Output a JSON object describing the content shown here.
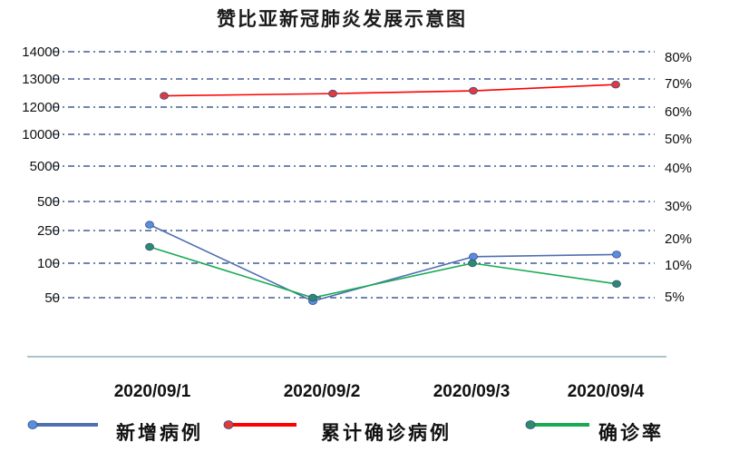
{
  "chart_data": {
    "type": "line",
    "title": "赞比亚新冠肺炎发展示意图",
    "categories": [
      "2020/09/1",
      "2020/09/2",
      "2020/09/3",
      "2020/09/4"
    ],
    "left_axis": {
      "tick_labels": [
        "14000",
        "13000",
        "12000",
        "10000",
        "5000",
        "500",
        "250",
        "100",
        "50"
      ]
    },
    "right_axis": {
      "tick_labels": [
        "80%",
        "70%",
        "60%",
        "50%",
        "40%",
        "30%",
        "20%",
        "10%",
        "5%"
      ]
    },
    "grid": true,
    "legend_position": "bottom",
    "series": [
      {
        "name": "新增病例",
        "axis": "left",
        "values": [
          300,
          45,
          130,
          140
        ],
        "color": "#4f6fb0",
        "marker_color": "#5b8ddb"
      },
      {
        "name": "累计确诊病例",
        "axis": "left",
        "values": [
          12400,
          12480,
          12580,
          12800
        ],
        "color": "#ff0000",
        "marker_color": "#e03a3a"
      },
      {
        "name": "确诊率",
        "axis": "right",
        "values": [
          15,
          5,
          10,
          7
        ],
        "color": "#1aaa55",
        "marker_color": "#2e8b6a"
      }
    ]
  }
}
